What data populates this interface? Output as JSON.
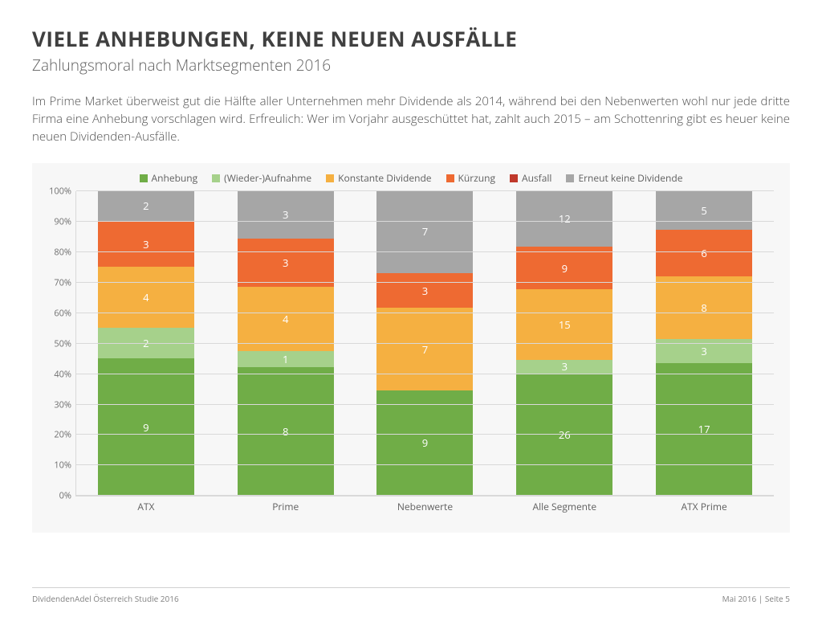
{
  "title": "VIELE ANHEBUNGEN, KEINE NEUEN AUSFÄLLE",
  "subtitle": "Zahlungsmoral nach Marktsegmenten 2016",
  "body": "Im Prime Market überweist gut die Hälfte aller Unternehmen mehr Dividende als 2014, während bei den Nebenwerten wohl nur jede dritte Firma eine Anhebung vorschlagen wird. Erfreulich: Wer im Vorjahr ausgeschüttet hat, zahlt auch 2015 – am Schottenring gibt es heuer keine neuen Dividenden-Ausfälle.",
  "chart": {
    "type": "stacked-bar-100",
    "background_color": "#f7f7f7",
    "grid_color": "#d9d9d9",
    "label_color": "#606060",
    "label_fontsize": 12,
    "value_fontsize": 13,
    "value_color": "#ffffff",
    "y_axis": {
      "min": 0,
      "max": 100,
      "tick_step": 10,
      "suffix": "%"
    },
    "categories": [
      "ATX",
      "Prime",
      "Nebenwerte",
      "Alle Segmente",
      "ATX Prime"
    ],
    "series": [
      {
        "name": "Anhebung",
        "color": "#70ad47"
      },
      {
        "name": "(Wieder-)Aufnahme",
        "color": "#a6d18b"
      },
      {
        "name": "Konstante Dividende",
        "color": "#f5b041"
      },
      {
        "name": "Kürzung",
        "color": "#ee6a32"
      },
      {
        "name": "Ausfall",
        "color": "#c0392b"
      },
      {
        "name": "Erneut keine Dividende",
        "color": "#a6a6a6"
      }
    ],
    "stacks": [
      {
        "category": "ATX",
        "segments": [
          {
            "series": 0,
            "value": 9
          },
          {
            "series": 1,
            "value": 2
          },
          {
            "series": 2,
            "value": 4
          },
          {
            "series": 3,
            "value": 3
          },
          {
            "series": 5,
            "value": 2
          }
        ]
      },
      {
        "category": "Prime",
        "segments": [
          {
            "series": 0,
            "value": 8
          },
          {
            "series": 1,
            "value": 1
          },
          {
            "series": 2,
            "value": 4
          },
          {
            "series": 3,
            "value": 3
          },
          {
            "series": 5,
            "value": 3
          }
        ]
      },
      {
        "category": "Nebenwerte",
        "segments": [
          {
            "series": 0,
            "value": 9
          },
          {
            "series": 2,
            "value": 7
          },
          {
            "series": 3,
            "value": 3
          },
          {
            "series": 5,
            "value": 7
          }
        ]
      },
      {
        "category": "Alle Segmente",
        "segments": [
          {
            "series": 0,
            "value": 26
          },
          {
            "series": 1,
            "value": 3
          },
          {
            "series": 2,
            "value": 15
          },
          {
            "series": 3,
            "value": 9
          },
          {
            "series": 5,
            "value": 12
          }
        ]
      },
      {
        "category": "ATX Prime",
        "segments": [
          {
            "series": 0,
            "value": 17
          },
          {
            "series": 1,
            "value": 3
          },
          {
            "series": 2,
            "value": 8
          },
          {
            "series": 3,
            "value": 6
          },
          {
            "series": 5,
            "value": 5
          }
        ]
      }
    ]
  },
  "footer": {
    "left": "DividendenAdel Österreich Studie 2016",
    "right": "Mai 2016 | Seite 5"
  }
}
